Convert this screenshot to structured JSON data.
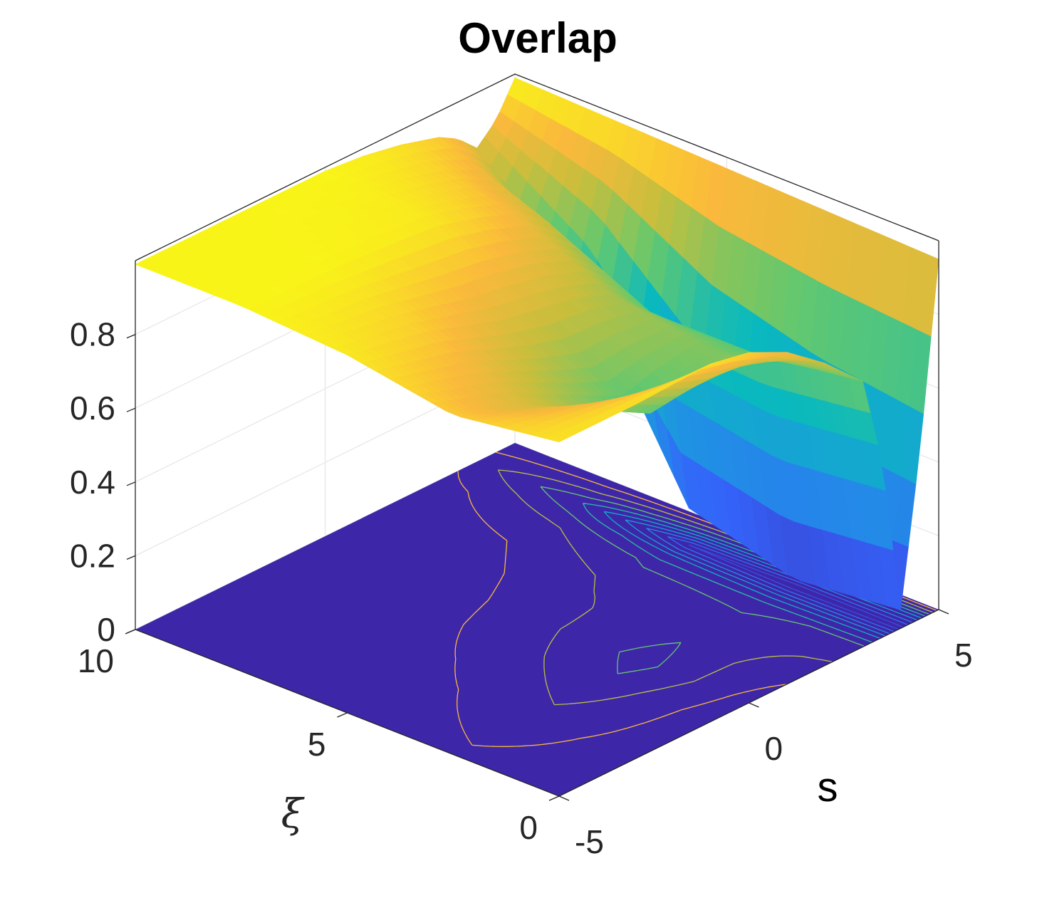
{
  "chart_data": {
    "type": "surface",
    "title": "Overlap",
    "xlabel": "s",
    "ylabel": "ξ",
    "zlabel": "",
    "x_range": [
      -5,
      5
    ],
    "y_range": [
      0,
      10
    ],
    "z_range": [
      0,
      1
    ],
    "x_ticks": [
      "-5",
      "0",
      "5"
    ],
    "y_ticks": [
      "0",
      "5",
      "10"
    ],
    "z_ticks": [
      "0",
      "0.2",
      "0.4",
      "0.6",
      "0.8"
    ],
    "grid": true,
    "colormap": "parula",
    "floor_color": "#3e26a8",
    "contours_on_floor": true,
    "profiles": [
      {
        "xi": 10,
        "s": [
          -5,
          -3,
          -1,
          0,
          1,
          2,
          3,
          3.5,
          4,
          4.5,
          5
        ],
        "z": [
          0.99,
          0.99,
          0.99,
          0.99,
          0.98,
          0.96,
          0.93,
          0.9,
          0.85,
          0.9,
          0.99
        ]
      },
      {
        "xi": 7.5,
        "s": [
          -5,
          -3,
          -1,
          0,
          1,
          2,
          3,
          3.5,
          4,
          4.5,
          5
        ],
        "z": [
          0.99,
          0.99,
          0.98,
          0.97,
          0.94,
          0.9,
          0.82,
          0.72,
          0.6,
          0.8,
          0.98
        ]
      },
      {
        "xi": 5,
        "s": [
          -5,
          -3,
          -1,
          0,
          1,
          2,
          3,
          3.5,
          4,
          4.5,
          5
        ],
        "z": [
          0.97,
          0.93,
          0.86,
          0.84,
          0.82,
          0.78,
          0.68,
          0.5,
          0.1,
          0.6,
          0.97
        ]
      },
      {
        "xi": 2.5,
        "s": [
          -5,
          -3,
          -1,
          0,
          1,
          2,
          3,
          3.5,
          4,
          4.5,
          5
        ],
        "z": [
          0.92,
          0.84,
          0.72,
          0.66,
          0.7,
          0.73,
          0.68,
          0.45,
          0.02,
          0.5,
          0.96
        ]
      },
      {
        "xi": 0,
        "s": [
          -5,
          -3,
          -1,
          0,
          1,
          2,
          3,
          3.5,
          4,
          4.5,
          5
        ],
        "z": [
          0.96,
          0.96,
          0.97,
          0.95,
          0.9,
          0.82,
          0.72,
          0.48,
          0.05,
          0.45,
          0.95
        ]
      }
    ]
  }
}
